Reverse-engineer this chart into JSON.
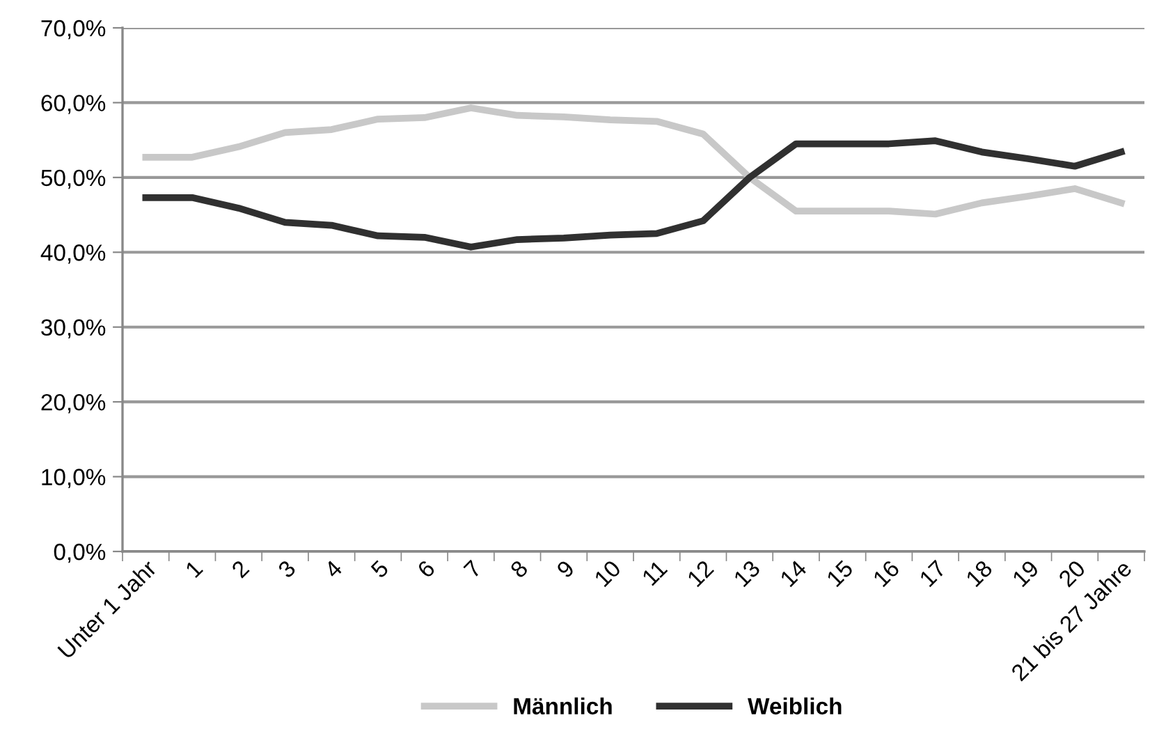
{
  "chart_data": {
    "type": "line",
    "categories": [
      "Unter 1 Jahr",
      "1",
      "2",
      "3",
      "4",
      "5",
      "6",
      "7",
      "8",
      "9",
      "10",
      "11",
      "12",
      "13",
      "14",
      "15",
      "16",
      "17",
      "18",
      "19",
      "20",
      "21 bis 27 Jahre"
    ],
    "series": [
      {
        "name": "Männlich",
        "color": "#c8c8c8",
        "values": [
          52.7,
          52.7,
          54.1,
          56.0,
          56.4,
          57.8,
          58.0,
          59.3,
          58.3,
          58.1,
          57.7,
          57.5,
          55.8,
          50.0,
          45.5,
          45.5,
          45.5,
          45.1,
          46.6,
          47.5,
          48.5,
          46.6
        ]
      },
      {
        "name": "Weiblich",
        "color": "#303030",
        "values": [
          47.3,
          47.3,
          45.9,
          44.0,
          43.6,
          42.2,
          42.0,
          40.7,
          41.7,
          41.9,
          42.3,
          42.5,
          44.2,
          50.0,
          54.5,
          54.5,
          54.5,
          54.9,
          53.4,
          52.5,
          51.5,
          53.4
        ]
      }
    ],
    "ylim": [
      0,
      70
    ],
    "yticks": [
      {
        "value": 0,
        "label": "0,0%"
      },
      {
        "value": 10,
        "label": "10,0%"
      },
      {
        "value": 20,
        "label": "20,0%"
      },
      {
        "value": 30,
        "label": "30,0%"
      },
      {
        "value": 40,
        "label": "40,0%"
      },
      {
        "value": 50,
        "label": "50,0%"
      },
      {
        "value": 60,
        "label": "60,0%"
      },
      {
        "value": 70,
        "label": "70,0%"
      }
    ],
    "grid": "y",
    "legend": "bottom",
    "marker": "none",
    "line_style": "solid"
  }
}
